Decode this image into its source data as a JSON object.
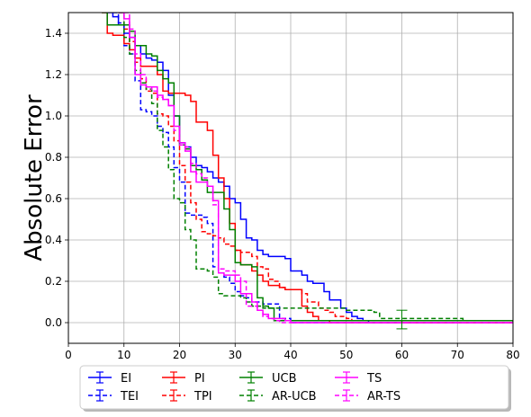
{
  "chart_data": {
    "type": "line",
    "title": "",
    "xlabel": "",
    "ylabel": "Absolute Error",
    "xlim": [
      0,
      80
    ],
    "ylim": [
      -0.1,
      1.5
    ],
    "xticks": [
      0,
      10,
      20,
      30,
      40,
      50,
      60,
      70,
      80
    ],
    "yticks": [
      0.0,
      0.2,
      0.4,
      0.6,
      0.8,
      1.0,
      1.2,
      1.4
    ],
    "grid": true,
    "legend_position": "bottom-center",
    "series": [
      {
        "name": "EI",
        "color": "#0000ff",
        "dash": "solid",
        "x": [
          7,
          8,
          9,
          10,
          11,
          12,
          13,
          14,
          15,
          16,
          17,
          18,
          19,
          20,
          21,
          22,
          23,
          24,
          25,
          26,
          27,
          28,
          29,
          30,
          31,
          32,
          33,
          34,
          35,
          36,
          37,
          38,
          39,
          40,
          41,
          42,
          43,
          44,
          45,
          46,
          47,
          48,
          49,
          50,
          51,
          52,
          53,
          54,
          55,
          80
        ],
        "y": [
          1.5,
          1.48,
          1.44,
          1.4,
          1.38,
          1.34,
          1.3,
          1.28,
          1.27,
          1.26,
          1.22,
          1.1,
          1.0,
          0.87,
          0.85,
          0.8,
          0.76,
          0.75,
          0.73,
          0.7,
          0.68,
          0.66,
          0.6,
          0.58,
          0.5,
          0.41,
          0.4,
          0.35,
          0.33,
          0.32,
          0.32,
          0.32,
          0.31,
          0.25,
          0.25,
          0.23,
          0.2,
          0.19,
          0.19,
          0.15,
          0.11,
          0.11,
          0.07,
          0.05,
          0.03,
          0.02,
          0.01,
          0.0,
          0.0,
          0.0
        ]
      },
      {
        "name": "TEI",
        "color": "#0000ff",
        "dash": "dashed",
        "x": [
          8,
          9,
          10,
          11,
          12,
          13,
          14,
          15,
          16,
          17,
          18,
          19,
          20,
          21,
          22,
          23,
          24,
          25,
          26,
          27,
          28,
          29,
          30,
          31,
          32,
          33,
          34,
          35,
          36,
          37,
          38,
          40,
          80
        ],
        "y": [
          1.5,
          1.45,
          1.34,
          1.3,
          1.17,
          1.03,
          1.02,
          1.0,
          0.95,
          0.92,
          0.85,
          0.75,
          0.68,
          0.53,
          0.52,
          0.52,
          0.51,
          0.48,
          0.27,
          0.24,
          0.22,
          0.19,
          0.15,
          0.13,
          0.12,
          0.1,
          0.1,
          0.09,
          0.09,
          0.09,
          0.02,
          0.0,
          0.0
        ]
      },
      {
        "name": "PI",
        "color": "#ff0000",
        "dash": "solid",
        "x": [
          6,
          7,
          8,
          9,
          10,
          11,
          12,
          13,
          14,
          15,
          16,
          17,
          18,
          19,
          20,
          21,
          22,
          23,
          24,
          25,
          26,
          27,
          28,
          29,
          30,
          31,
          32,
          33,
          34,
          35,
          36,
          37,
          38,
          39,
          40,
          42,
          43,
          44,
          45,
          46,
          47,
          48,
          80
        ],
        "y": [
          1.5,
          1.4,
          1.39,
          1.39,
          1.35,
          1.32,
          1.28,
          1.24,
          1.24,
          1.24,
          1.2,
          1.12,
          1.11,
          1.11,
          1.11,
          1.1,
          1.07,
          0.97,
          0.97,
          0.93,
          0.81,
          0.7,
          0.6,
          0.48,
          0.35,
          0.28,
          0.28,
          0.25,
          0.23,
          0.2,
          0.18,
          0.18,
          0.17,
          0.16,
          0.16,
          0.08,
          0.05,
          0.03,
          0.01,
          0.01,
          0.0,
          0.0,
          0.0
        ]
      },
      {
        "name": "TPI",
        "color": "#ff0000",
        "dash": "dashed",
        "x": [
          9,
          10,
          11,
          12,
          13,
          14,
          15,
          16,
          17,
          18,
          19,
          20,
          21,
          22,
          23,
          24,
          25,
          26,
          27,
          28,
          29,
          30,
          31,
          32,
          33,
          34,
          35,
          36,
          37,
          38,
          39,
          40,
          41,
          42,
          43,
          44,
          45,
          46,
          47,
          48,
          49,
          50,
          51,
          60,
          80
        ],
        "y": [
          1.5,
          1.42,
          1.36,
          1.26,
          1.18,
          1.12,
          1.11,
          1.01,
          1.0,
          0.95,
          0.88,
          0.76,
          0.68,
          0.58,
          0.5,
          0.44,
          0.43,
          0.42,
          0.41,
          0.38,
          0.37,
          0.35,
          0.34,
          0.34,
          0.32,
          0.27,
          0.26,
          0.21,
          0.2,
          0.17,
          0.16,
          0.16,
          0.16,
          0.14,
          0.1,
          0.1,
          0.07,
          0.06,
          0.05,
          0.03,
          0.03,
          0.02,
          0.01,
          0.0,
          0.0
        ]
      },
      {
        "name": "UCB",
        "color": "#008000",
        "dash": "solid",
        "x": [
          6,
          7,
          8,
          9,
          10,
          11,
          12,
          13,
          14,
          15,
          16,
          17,
          18,
          19,
          20,
          21,
          22,
          23,
          24,
          25,
          26,
          27,
          28,
          29,
          30,
          31,
          32,
          33,
          34,
          35,
          36,
          37,
          80
        ],
        "y": [
          1.5,
          1.44,
          1.44,
          1.44,
          1.44,
          1.41,
          1.34,
          1.34,
          1.3,
          1.29,
          1.22,
          1.18,
          1.16,
          1.0,
          0.86,
          0.84,
          0.76,
          0.74,
          0.69,
          0.63,
          0.63,
          0.63,
          0.55,
          0.45,
          0.29,
          0.28,
          0.28,
          0.27,
          0.12,
          0.08,
          0.07,
          0.01,
          0.0
        ]
      },
      {
        "name": "AR-UCB",
        "color": "#008000",
        "dash": "dashed",
        "x": [
          9,
          10,
          11,
          12,
          13,
          14,
          15,
          16,
          17,
          18,
          19,
          20,
          21,
          22,
          23,
          24,
          25,
          26,
          27,
          28,
          29,
          30,
          31,
          32,
          33,
          34,
          35,
          36,
          37,
          38,
          39,
          40,
          41,
          42,
          50,
          55,
          56,
          57,
          58,
          59,
          60,
          61,
          62,
          70,
          71,
          80
        ],
        "y": [
          1.5,
          1.38,
          1.3,
          1.22,
          1.16,
          1.13,
          1.06,
          0.93,
          0.85,
          0.74,
          0.6,
          0.58,
          0.45,
          0.4,
          0.26,
          0.26,
          0.25,
          0.22,
          0.14,
          0.13,
          0.13,
          0.13,
          0.12,
          0.1,
          0.08,
          0.08,
          0.07,
          0.07,
          0.07,
          0.07,
          0.07,
          0.07,
          0.07,
          0.07,
          0.06,
          0.05,
          0.02,
          0.02,
          0.02,
          0.02,
          0.02,
          0.02,
          0.02,
          0.02,
          0.01,
          0.01
        ]
      },
      {
        "name": "TS",
        "color": "#ff00ff",
        "dash": "solid",
        "x": [
          9,
          10,
          11,
          12,
          13,
          14,
          15,
          16,
          17,
          18,
          19,
          20,
          21,
          22,
          23,
          24,
          25,
          26,
          27,
          28,
          29,
          30,
          31,
          32,
          33,
          34,
          35,
          36,
          37,
          38,
          39,
          40,
          80
        ],
        "y": [
          1.5,
          1.47,
          1.38,
          1.2,
          1.15,
          1.14,
          1.14,
          1.1,
          1.08,
          1.05,
          0.95,
          0.87,
          0.83,
          0.73,
          0.68,
          0.68,
          0.66,
          0.59,
          0.24,
          0.23,
          0.23,
          0.2,
          0.14,
          0.14,
          0.1,
          0.06,
          0.04,
          0.02,
          0.02,
          0.02,
          0.01,
          0.0,
          0.0
        ]
      },
      {
        "name": "AR-TS",
        "color": "#ff00ff",
        "dash": "dashed",
        "x": [
          10,
          11,
          12,
          13,
          14,
          15,
          16,
          17,
          18,
          19,
          20,
          21,
          22,
          23,
          24,
          25,
          26,
          27,
          28,
          29,
          30,
          31,
          32,
          33,
          34,
          35,
          36,
          37,
          38,
          80
        ],
        "y": [
          1.5,
          1.42,
          1.3,
          1.2,
          1.14,
          1.12,
          1.09,
          1.08,
          1.05,
          0.93,
          0.86,
          0.85,
          0.77,
          0.72,
          0.7,
          0.66,
          0.57,
          0.26,
          0.25,
          0.25,
          0.23,
          0.2,
          0.08,
          0.08,
          0.06,
          0.03,
          0.02,
          0.01,
          0.0,
          0.0
        ]
      }
    ]
  }
}
